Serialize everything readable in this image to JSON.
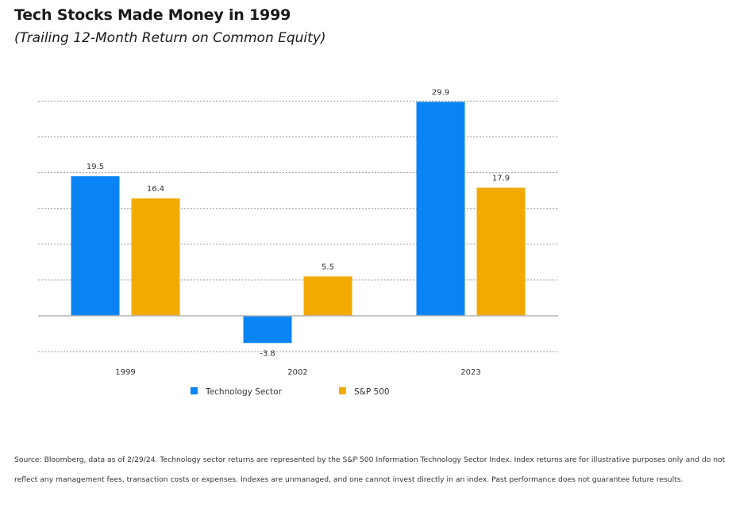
{
  "title": "Tech Stocks Made Money in 1999",
  "subtitle": "(Trailing 12-Month Return on Common Equity)",
  "source_note": "Source: Bloomberg, data as of 2/29/24. Technology sector returns are represented by the S&P 500 Information Technology Sector Index. Index returns are for illustrative purposes only and do not reflect any management fees, transaction costs or expenses. Indexes are unmanaged, and one cannot invest directly in an index. Past performance does not guarantee future results.",
  "colors": {
    "technology": "#0a84f5",
    "sp500": "#f2a900",
    "grid": "#9a9a9a",
    "axis": "#b5b5b5",
    "label": "#333333"
  },
  "chart_data": {
    "type": "bar",
    "title": "Tech Stocks Made Money in 1999",
    "subtitle": "(Trailing 12-Month Return on Common Equity)",
    "xlabel": "",
    "ylabel": "",
    "categories": [
      "1999",
      "2002",
      "2023"
    ],
    "series": [
      {
        "name": "Technology Sector",
        "values": [
          19.5,
          -3.8,
          29.9
        ],
        "labels": [
          "19.5",
          "-3.8",
          "29.9"
        ]
      },
      {
        "name": "S&P 500",
        "values": [
          16.4,
          5.5,
          17.9
        ],
        "labels": [
          "16.4",
          "5.5",
          "17.9"
        ]
      }
    ],
    "ylim": [
      -5,
      30
    ],
    "grid_step": 5,
    "grid": true,
    "legend_position": "bottom-left"
  }
}
